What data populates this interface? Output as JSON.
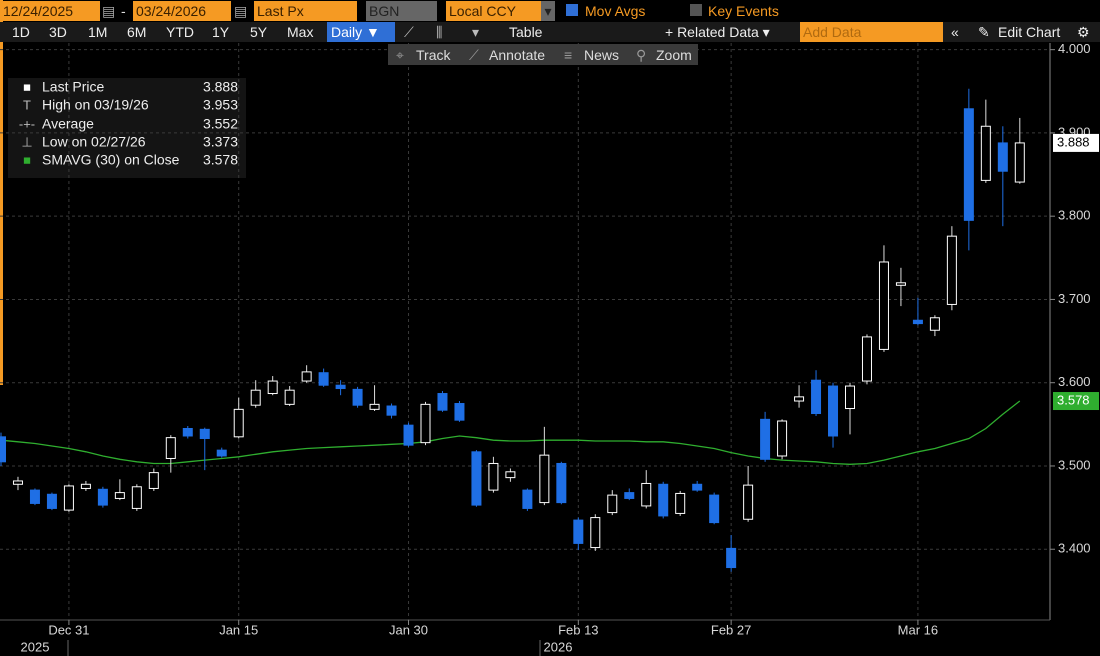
{
  "toolbar": {
    "start_date": "12/24/2025",
    "end_date": "03/24/2026",
    "field": "Last Px",
    "source": "BGN",
    "currency": "Local CCY",
    "mov_avgs": "Mov Avgs",
    "key_events": "Key Events",
    "periods": [
      "1D",
      "3D",
      "1M",
      "6M",
      "YTD",
      "1Y",
      "5Y",
      "Max"
    ],
    "frequency": "Daily ▼",
    "table": "Table",
    "related_data": "+ Related Data ▾",
    "add_data": "Add Data",
    "edit_chart": "Edit Chart",
    "tools": [
      "Track",
      "Annotate",
      "News",
      "Zoom"
    ]
  },
  "chart_data": {
    "type": "candlestick",
    "categories": [
      null,
      null,
      null,
      null,
      "Dec 31",
      null,
      null,
      null,
      null,
      null,
      null,
      null,
      null,
      null,
      "Jan 15",
      null,
      null,
      null,
      null,
      null,
      null,
      null,
      null,
      null,
      "Jan 30",
      null,
      null,
      null,
      null,
      null,
      null,
      null,
      null,
      null,
      "Feb 13",
      null,
      null,
      null,
      null,
      null,
      null,
      null,
      null,
      "Feb 27",
      null,
      null,
      null,
      null,
      null,
      null,
      null,
      null,
      null,
      null,
      "Mar 16",
      null,
      null,
      null,
      null,
      null,
      null
    ],
    "years": [
      "2025",
      "2026"
    ],
    "open": [
      3.535,
      3.478,
      3.471,
      3.466,
      3.447,
      3.473,
      3.472,
      3.461,
      3.449,
      3.473,
      3.509,
      3.545,
      3.544,
      3.519,
      3.535,
      3.573,
      3.587,
      3.574,
      3.602,
      3.612,
      3.597,
      3.592,
      3.568,
      3.572,
      3.549,
      3.528,
      3.587,
      3.575,
      3.517,
      3.471,
      3.486,
      3.471,
      3.456,
      3.503,
      3.435,
      3.402,
      3.444,
      3.468,
      3.452,
      3.478,
      3.443,
      3.478,
      3.465,
      3.401,
      3.436,
      3.556,
      3.512,
      3.578,
      3.603,
      3.596,
      3.569,
      3.602,
      3.64,
      3.717,
      3.675,
      3.663,
      3.694,
      3.929,
      3.843,
      3.888,
      3.841
    ],
    "high": [
      3.54,
      3.487,
      3.473,
      3.468,
      3.478,
      3.482,
      3.475,
      3.484,
      3.478,
      3.497,
      3.537,
      3.548,
      3.546,
      3.522,
      3.582,
      3.603,
      3.608,
      3.596,
      3.621,
      3.617,
      3.603,
      3.595,
      3.597,
      3.575,
      3.552,
      3.577,
      3.59,
      3.578,
      3.519,
      3.511,
      3.497,
      3.473,
      3.547,
      3.505,
      3.438,
      3.442,
      3.471,
      3.473,
      3.495,
      3.481,
      3.47,
      3.482,
      3.468,
      3.417,
      3.5,
      3.565,
      3.556,
      3.597,
      3.615,
      3.6,
      3.6,
      3.658,
      3.765,
      3.738,
      3.702,
      3.681,
      3.788,
      3.953,
      3.94,
      3.908,
      3.918
    ],
    "low": [
      3.5,
      3.471,
      3.453,
      3.447,
      3.445,
      3.47,
      3.45,
      3.459,
      3.446,
      3.47,
      3.492,
      3.533,
      3.495,
      3.51,
      3.533,
      3.57,
      3.585,
      3.572,
      3.6,
      3.595,
      3.585,
      3.57,
      3.566,
      3.557,
      3.523,
      3.525,
      3.565,
      3.553,
      3.451,
      3.468,
      3.481,
      3.446,
      3.453,
      3.454,
      3.399,
      3.398,
      3.441,
      3.459,
      3.449,
      3.437,
      3.44,
      3.469,
      3.43,
      3.373,
      3.433,
      3.505,
      3.508,
      3.57,
      3.56,
      3.522,
      3.538,
      3.598,
      3.637,
      3.692,
      3.669,
      3.656,
      3.687,
      3.759,
      3.84,
      3.788,
      3.839
    ],
    "close": [
      3.505,
      3.482,
      3.455,
      3.449,
      3.476,
      3.478,
      3.453,
      3.468,
      3.475,
      3.492,
      3.534,
      3.536,
      3.533,
      3.512,
      3.568,
      3.591,
      3.602,
      3.591,
      3.613,
      3.597,
      3.593,
      3.573,
      3.574,
      3.561,
      3.525,
      3.574,
      3.567,
      3.555,
      3.453,
      3.503,
      3.493,
      3.449,
      3.513,
      3.456,
      3.407,
      3.438,
      3.465,
      3.461,
      3.479,
      3.44,
      3.467,
      3.471,
      3.432,
      3.378,
      3.477,
      3.508,
      3.554,
      3.583,
      3.563,
      3.536,
      3.596,
      3.655,
      3.745,
      3.72,
      3.671,
      3.678,
      3.776,
      3.795,
      3.908,
      3.854,
      3.888
    ],
    "up_color": "#ffffff",
    "down_color": "#1f6fe5",
    "sma": {
      "name": "SMAVG (30)  on Close",
      "color": "#2fae2f",
      "values": [
        3.531,
        3.529,
        3.527,
        3.524,
        3.521,
        3.517,
        3.512,
        3.508,
        3.505,
        3.503,
        3.503,
        3.505,
        3.507,
        3.509,
        3.511,
        3.514,
        3.517,
        3.519,
        3.521,
        3.522,
        3.523,
        3.524,
        3.525,
        3.526,
        3.527,
        3.529,
        3.533,
        3.536,
        3.534,
        3.531,
        3.53,
        3.53,
        3.531,
        3.531,
        3.531,
        3.53,
        3.53,
        3.53,
        3.529,
        3.529,
        3.527,
        3.524,
        3.521,
        3.516,
        3.512,
        3.509,
        3.507,
        3.506,
        3.505,
        3.503,
        3.502,
        3.503,
        3.507,
        3.512,
        3.517,
        3.521,
        3.527,
        3.533,
        3.545,
        3.562,
        3.578
      ]
    },
    "stats": [
      {
        "label": "Last Price",
        "value": 3.888
      },
      {
        "label": "High on 03/19/26",
        "value": 3.953
      },
      {
        "label": "Average",
        "value": 3.552
      },
      {
        "label": "Low on 02/27/26",
        "value": 3.373
      },
      {
        "label": "SMAVG (30)  on Close",
        "value": 3.578
      }
    ],
    "ylim": [
      3.315,
      4.008
    ],
    "yticks": [
      {
        "value": 3.4,
        "label": "3.400"
      },
      {
        "value": 3.5,
        "label": "3.500"
      },
      {
        "value": 3.6,
        "label": "3.600"
      },
      {
        "value": 3.7,
        "label": "3.700"
      },
      {
        "value": 3.8,
        "label": "3.800"
      },
      {
        "value": 3.9,
        "label": "3.900"
      },
      {
        "value": 4.0,
        "label": "4.000"
      }
    ],
    "grid": true
  }
}
